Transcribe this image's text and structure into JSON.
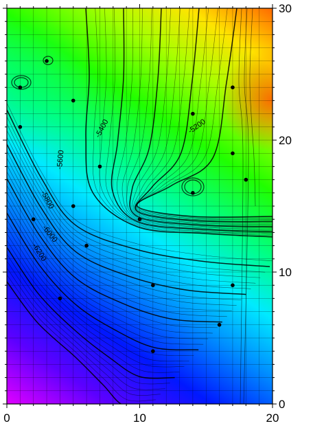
{
  "map": {
    "x_ticks": [
      "0",
      "10",
      "20"
    ],
    "y_ticks": [
      "0",
      "10",
      "20",
      "30"
    ],
    "contour_labels": [
      {
        "text": "-5200",
        "x": 14.4,
        "y": 20.9,
        "angle": -35
      },
      {
        "text": "-5400",
        "x": 7.3,
        "y": 20.8,
        "angle": -62
      },
      {
        "text": "-5600",
        "x": 4.2,
        "y": 18.5,
        "angle": -85
      },
      {
        "text": "-5800",
        "x": 2.9,
        "y": 15.4,
        "angle": 62
      },
      {
        "text": "-6000",
        "x": 3.1,
        "y": 12.8,
        "angle": 52
      },
      {
        "text": "-6200",
        "x": 2.3,
        "y": 11.4,
        "angle": 58
      }
    ],
    "sample_points": [
      {
        "x": 1,
        "y": 24
      },
      {
        "x": 3,
        "y": 26
      },
      {
        "x": 5,
        "y": 23
      },
      {
        "x": 1,
        "y": 21
      },
      {
        "x": 14,
        "y": 22
      },
      {
        "x": 17,
        "y": 24
      },
      {
        "x": 17,
        "y": 19
      },
      {
        "x": 7,
        "y": 18
      },
      {
        "x": 14,
        "y": 16
      },
      {
        "x": 18,
        "y": 17
      },
      {
        "x": 5,
        "y": 15
      },
      {
        "x": 2,
        "y": 14
      },
      {
        "x": 10,
        "y": 14
      },
      {
        "x": 6,
        "y": 12
      },
      {
        "x": 11,
        "y": 9
      },
      {
        "x": 17,
        "y": 9
      },
      {
        "x": 4,
        "y": 8
      },
      {
        "x": 16,
        "y": 6
      },
      {
        "x": 11,
        "y": 4
      }
    ]
  }
}
